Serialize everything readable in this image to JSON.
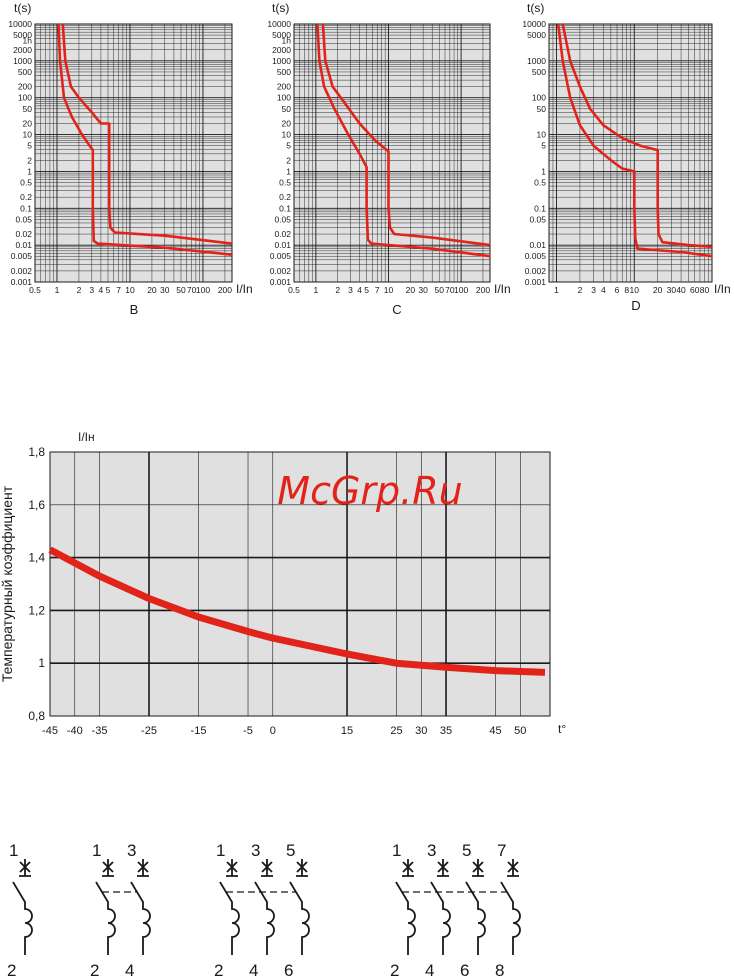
{
  "trip_charts": [
    {
      "caption": "B",
      "y_axis_label": "t(s)",
      "x_axis_label": "I/In",
      "y_ticks": [
        "10000",
        "5000",
        "1h",
        "2000",
        "1000",
        "500",
        "200",
        "100",
        "50",
        "20",
        "10",
        "5",
        "2",
        "1",
        "0.5",
        "0.2",
        "0.1",
        "0.05",
        "0.02",
        "0.01",
        "0.005",
        "0.002",
        "0.001"
      ],
      "x_ticks": [
        "0.5",
        "1",
        "2",
        "3",
        "4",
        "5",
        "7",
        "10",
        "20",
        "30",
        "50",
        "70",
        "100",
        "200"
      ],
      "x_range": [
        0.5,
        250
      ],
      "y_range": [
        0.001,
        10000
      ],
      "curve_color": "#e2231a",
      "upper_curve": [
        [
          1.2,
          10000
        ],
        [
          1.3,
          1000
        ],
        [
          1.55,
          200
        ],
        [
          2,
          100
        ],
        [
          3,
          40
        ],
        [
          4,
          20
        ],
        [
          5.2,
          20
        ],
        [
          5.2,
          0.1
        ],
        [
          5.4,
          0.03
        ],
        [
          6.2,
          0.022
        ],
        [
          30,
          0.018
        ],
        [
          250,
          0.011
        ]
      ],
      "lower_curve": [
        [
          1.05,
          10000
        ],
        [
          1.1,
          1000
        ],
        [
          1.25,
          100
        ],
        [
          1.6,
          30
        ],
        [
          2.2,
          10
        ],
        [
          2.8,
          5
        ],
        [
          3.1,
          3.8
        ],
        [
          3.1,
          0.1
        ],
        [
          3.2,
          0.013
        ],
        [
          3.6,
          0.011
        ],
        [
          30,
          0.0085
        ],
        [
          250,
          0.0055
        ]
      ]
    },
    {
      "caption": "C",
      "y_axis_label": "t(s)",
      "x_axis_label": "I/In",
      "y_ticks": [
        "10000",
        "5000",
        "1h",
        "2000",
        "1000",
        "500",
        "200",
        "100",
        "50",
        "20",
        "10",
        "5",
        "2",
        "1",
        "0.5",
        "0.2",
        "0.1",
        "0.05",
        "0.02",
        "0.01",
        "0.005",
        "0.002",
        "0.001"
      ],
      "x_ticks": [
        "0.5",
        "1",
        "2",
        "3",
        "4",
        "5",
        "7",
        "10",
        "20",
        "30",
        "50",
        "70",
        "100",
        "200"
      ],
      "x_range": [
        0.5,
        250
      ],
      "y_range": [
        0.001,
        10000
      ],
      "curve_color": "#e2231a",
      "upper_curve": [
        [
          1.25,
          10000
        ],
        [
          1.35,
          1000
        ],
        [
          1.7,
          200
        ],
        [
          2.4,
          80
        ],
        [
          4,
          20
        ],
        [
          6.5,
          7
        ],
        [
          10,
          3.5
        ],
        [
          10,
          0.1
        ],
        [
          10.5,
          0.03
        ],
        [
          12,
          0.02
        ],
        [
          40,
          0.016
        ],
        [
          250,
          0.01
        ]
      ],
      "lower_curve": [
        [
          1.05,
          10000
        ],
        [
          1.12,
          1000
        ],
        [
          1.3,
          200
        ],
        [
          1.8,
          50
        ],
        [
          2.8,
          10
        ],
        [
          4,
          3
        ],
        [
          5,
          1.3
        ],
        [
          5,
          0.1
        ],
        [
          5.2,
          0.014
        ],
        [
          5.8,
          0.011
        ],
        [
          40,
          0.008
        ],
        [
          250,
          0.005
        ]
      ]
    },
    {
      "caption": "D",
      "y_axis_label": "t(s)",
      "x_axis_label": "I/In",
      "y_ticks": [
        "10000",
        "5000",
        "1000",
        "500",
        "100",
        "50",
        "10",
        "5",
        "1",
        "0.5",
        "0.1",
        "0.05",
        "0.01",
        "0.005",
        "0.002",
        "0.001"
      ],
      "x_ticks": [
        "1",
        "2",
        "3",
        "4",
        "6",
        "8",
        "10",
        "20",
        "30",
        "40",
        "60",
        "80"
      ],
      "x_range": [
        0.8,
        100
      ],
      "y_range": [
        0.001,
        10000
      ],
      "curve_color": "#e2231a",
      "upper_curve": [
        [
          1.2,
          10000
        ],
        [
          1.5,
          1000
        ],
        [
          2,
          200
        ],
        [
          2.7,
          50
        ],
        [
          4,
          18
        ],
        [
          7,
          8
        ],
        [
          12,
          5
        ],
        [
          20,
          3.8
        ],
        [
          20,
          0.1
        ],
        [
          20.5,
          0.02
        ],
        [
          23,
          0.012
        ],
        [
          50,
          0.01
        ],
        [
          100,
          0.009
        ]
      ],
      "lower_curve": [
        [
          1.05,
          10000
        ],
        [
          1.2,
          1000
        ],
        [
          1.5,
          100
        ],
        [
          2,
          18
        ],
        [
          3,
          5
        ],
        [
          5,
          2
        ],
        [
          7,
          1.2
        ],
        [
          10,
          1
        ],
        [
          10,
          0.1
        ],
        [
          10.3,
          0.015
        ],
        [
          11,
          0.008
        ],
        [
          40,
          0.0065
        ],
        [
          100,
          0.005
        ]
      ]
    }
  ],
  "temperature_chart": {
    "y_axis_unit": "I/Iн",
    "y_axis_title": "Температурный коэффициент",
    "x_axis_unit": "t°",
    "y_ticks": [
      "1,8",
      "1,6",
      "1,4",
      "1,2",
      "1",
      "0,8"
    ],
    "x_ticks": [
      "-45",
      "-40",
      "-35",
      "-25",
      "-15",
      "-5",
      "0",
      "15",
      "25",
      "30",
      "35",
      "45",
      "50"
    ],
    "y_range": [
      0.8,
      1.8
    ],
    "x_range": [
      -45,
      56
    ],
    "curve_color": "#e2231a",
    "curve": [
      [
        -45,
        1.43
      ],
      [
        -35,
        1.33
      ],
      [
        -25,
        1.245
      ],
      [
        -15,
        1.175
      ],
      [
        -5,
        1.12
      ],
      [
        0,
        1.095
      ],
      [
        15,
        1.035
      ],
      [
        25,
        1.0
      ],
      [
        35,
        0.985
      ],
      [
        45,
        0.972
      ],
      [
        55,
        0.965
      ]
    ]
  },
  "watermark": "McGrp.Ru",
  "pole_diagrams": [
    {
      "poles": [
        [
          "1",
          "2"
        ]
      ]
    },
    {
      "poles": [
        [
          "1",
          "2"
        ],
        [
          "3",
          "4"
        ]
      ]
    },
    {
      "poles": [
        [
          "1",
          "2"
        ],
        [
          "3",
          "4"
        ],
        [
          "5",
          "6"
        ]
      ]
    },
    {
      "poles": [
        [
          "1",
          "2"
        ],
        [
          "3",
          "4"
        ],
        [
          "5",
          "6"
        ],
        [
          "7",
          "8"
        ]
      ]
    }
  ]
}
